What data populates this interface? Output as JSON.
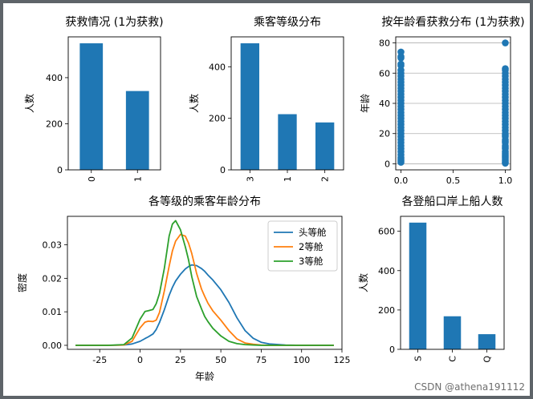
{
  "watermark": "CSDN @athena191112",
  "chart_data": [
    {
      "type": "bar",
      "title": "获救情况 (1为获救)",
      "xlabel": "",
      "ylabel": "人数",
      "categories": [
        "0",
        "1"
      ],
      "values": [
        549,
        342
      ],
      "ylim": [
        0,
        577
      ],
      "yticks": [
        0,
        200,
        400
      ],
      "xtick_rotation": 90,
      "color": "#1f77b4",
      "grid": false
    },
    {
      "type": "bar",
      "title": "乘客等级分布",
      "xlabel": "",
      "ylabel": "人数",
      "categories": [
        "3",
        "1",
        "2"
      ],
      "values": [
        491,
        216,
        184
      ],
      "ylim": [
        0,
        516
      ],
      "yticks": [
        0,
        200,
        400
      ],
      "xtick_rotation": 90,
      "color": "#1f77b4",
      "grid": false
    },
    {
      "type": "scatter",
      "title": "按年龄看获救分布 (1为获救)",
      "xlabel": "",
      "ylabel": "年龄",
      "x": [
        0,
        0,
        0,
        0,
        0,
        0,
        0,
        0,
        0,
        0,
        0,
        0,
        0,
        0,
        0,
        0,
        0,
        0,
        0,
        0,
        0,
        0,
        0,
        0,
        0,
        0,
        0,
        0,
        0,
        0,
        0,
        0,
        0,
        0,
        0,
        0,
        0,
        0,
        1,
        1,
        1,
        1,
        1,
        1,
        1,
        1,
        1,
        1,
        1,
        1,
        1,
        1,
        1,
        1,
        1,
        1,
        1,
        1,
        1,
        1,
        1,
        1,
        1,
        1,
        1,
        1,
        1,
        1,
        1,
        1,
        1,
        1,
        1,
        1,
        1,
        1,
        1,
        1,
        1
      ],
      "y": [
        1,
        2,
        3,
        4,
        6,
        8,
        10,
        12,
        14,
        16,
        18,
        20,
        22,
        24,
        26,
        28,
        30,
        32,
        34,
        36,
        38,
        40,
        42,
        44,
        46,
        48,
        50,
        52,
        54,
        56,
        58,
        60,
        62,
        65,
        66,
        70,
        71,
        74,
        0.42,
        1,
        2,
        4,
        6,
        8,
        10,
        12,
        14,
        16,
        18,
        20,
        22,
        24,
        26,
        28,
        30,
        32,
        34,
        36,
        38,
        40,
        42,
        44,
        46,
        48,
        50,
        52,
        54,
        56,
        58,
        60,
        62,
        63,
        80,
        3,
        5,
        7,
        11,
        15,
        19
      ],
      "xlim": [
        -0.05,
        1.05
      ],
      "ylim": [
        -4,
        84
      ],
      "xticks": [
        0.0,
        0.5,
        1.0
      ],
      "xtick_labels": [
        "0.0",
        "0.5",
        "1.0"
      ],
      "yticks": [
        0,
        20,
        40,
        60,
        80
      ],
      "color": "#1f77b4",
      "grid": "y"
    },
    {
      "type": "line",
      "title": "各等级的乘客年龄分布",
      "xlabel": "年龄",
      "ylabel": "密度",
      "x": [
        -40,
        -20,
        -10,
        -5,
        0,
        3,
        5,
        8,
        10,
        12,
        15,
        18,
        20,
        22,
        25,
        28,
        30,
        32,
        35,
        38,
        40,
        42,
        45,
        50,
        55,
        60,
        65,
        70,
        75,
        80,
        90,
        100,
        120
      ],
      "xlim": [
        -45,
        125
      ],
      "ylim": [
        -0.0012,
        0.0385
      ],
      "xticks": [
        -25,
        0,
        25,
        50,
        75,
        100,
        125
      ],
      "yticks": [
        0.0,
        0.01,
        0.02,
        0.03
      ],
      "ytick_labels": [
        "0.00",
        "0.01",
        "0.02",
        "0.03"
      ],
      "legend_position": "top-right",
      "grid": false,
      "series": [
        {
          "name": "头等舱",
          "color": "#1f77b4",
          "values": [
            0,
            0,
            0.0001,
            0.0004,
            0.0012,
            0.002,
            0.0025,
            0.0034,
            0.0047,
            0.0068,
            0.0106,
            0.0149,
            0.0173,
            0.0192,
            0.0212,
            0.0228,
            0.0235,
            0.024,
            0.0238,
            0.0229,
            0.0221,
            0.021,
            0.0195,
            0.0166,
            0.0128,
            0.0082,
            0.0044,
            0.0021,
            0.0009,
            0.0004,
            0.0001,
            0,
            0
          ]
        },
        {
          "name": "2等舱",
          "color": "#ff7f0e",
          "values": [
            0,
            0,
            0.0001,
            0.0012,
            0.0052,
            0.0069,
            0.0072,
            0.0071,
            0.0075,
            0.0098,
            0.0162,
            0.0236,
            0.0282,
            0.0311,
            0.0331,
            0.0326,
            0.0305,
            0.0274,
            0.0215,
            0.0168,
            0.0146,
            0.0126,
            0.0103,
            0.0075,
            0.0044,
            0.0019,
            0.0007,
            0.0003,
            0.0001,
            0,
            0,
            0,
            0
          ]
        },
        {
          "name": "3等舱",
          "color": "#2ca02c",
          "values": [
            0,
            0,
            0.0002,
            0.0022,
            0.0078,
            0.0101,
            0.0103,
            0.0107,
            0.0124,
            0.0155,
            0.0229,
            0.0326,
            0.0362,
            0.0372,
            0.0345,
            0.0294,
            0.0255,
            0.0205,
            0.0146,
            0.0109,
            0.0086,
            0.0071,
            0.0051,
            0.0028,
            0.0012,
            0.0005,
            0.0002,
            0.0001,
            0,
            0,
            0,
            0,
            0
          ]
        }
      ]
    },
    {
      "type": "bar",
      "title": "各登船口岸上船人数",
      "xlabel": "",
      "ylabel": "人数",
      "categories": [
        "S",
        "C",
        "Q"
      ],
      "values": [
        644,
        168,
        77
      ],
      "ylim": [
        0,
        676
      ],
      "yticks": [
        0,
        200,
        400,
        600
      ],
      "xtick_rotation": 90,
      "color": "#1f77b4",
      "grid": false
    }
  ]
}
